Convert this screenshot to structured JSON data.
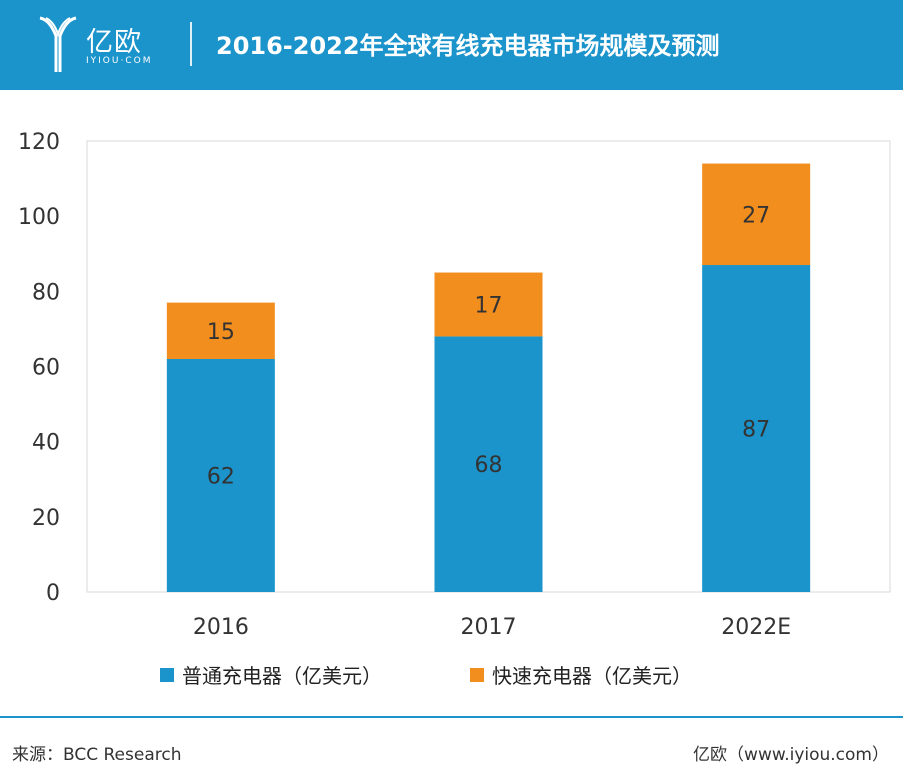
{
  "header": {
    "logo_text": "亿欧",
    "logo_sub": "IYIOU·COM",
    "title": "2016-2022年全球有线充电器市场规模及预测"
  },
  "footer": {
    "source": "来源：BCC Research",
    "credit": "亿欧（www.iyiou.com）"
  },
  "colors": {
    "header_bg": "#1b93cb",
    "series_regular": "#1b93cb",
    "series_fast": "#f28e1e"
  },
  "chart_data": {
    "type": "bar",
    "stacked": true,
    "title": "2016-2022年全球有线充电器市场规模及预测",
    "categories": [
      "2016",
      "2017",
      "2022E"
    ],
    "series": [
      {
        "name": "普通充电器（亿美元）",
        "values": [
          62,
          68,
          87
        ]
      },
      {
        "name": "快速充电器（亿美元）",
        "values": [
          15,
          17,
          27
        ]
      }
    ],
    "ylim": [
      0,
      120
    ],
    "yticks": [
      0,
      20,
      40,
      60,
      80,
      100,
      120
    ],
    "grid": false,
    "legend_position": "bottom"
  }
}
